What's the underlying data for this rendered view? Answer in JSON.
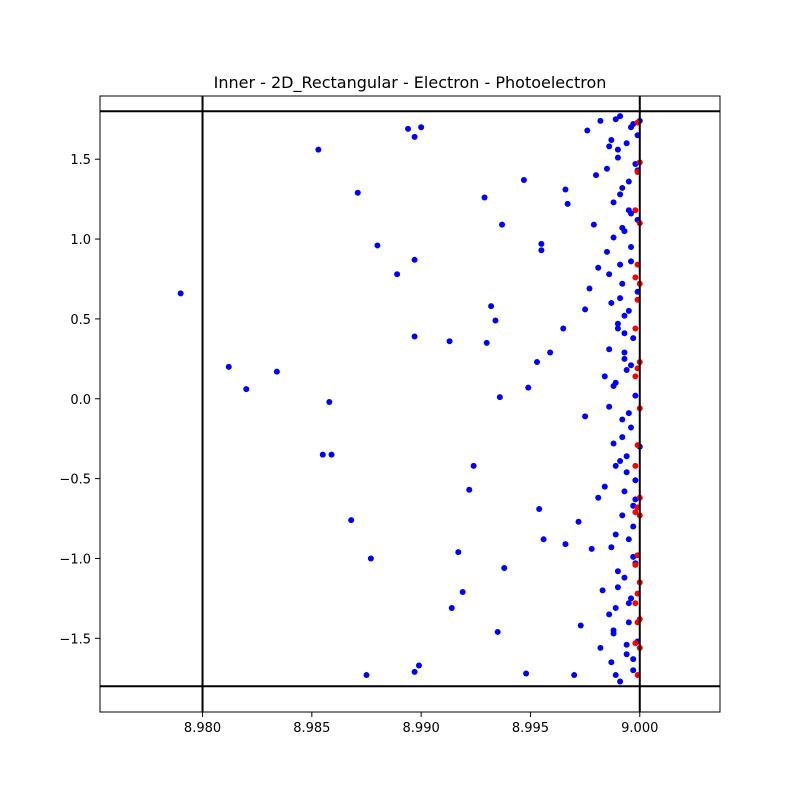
{
  "chart_data": {
    "type": "scatter",
    "title": "Inner - 2D_Rectangular - Electron - Photoelectron",
    "xlabel": "",
    "ylabel": "",
    "xlim": [
      8.97531,
      9.00367
    ],
    "ylim": [
      -1.9613,
      1.8957
    ],
    "xticks": [
      8.98,
      8.985,
      8.99,
      8.995,
      9.0
    ],
    "xtick_labels": [
      "8.980",
      "8.985",
      "8.990",
      "8.995",
      "9.000"
    ],
    "yticks": [
      -1.5,
      -1.0,
      -0.5,
      0.0,
      0.5,
      1.0,
      1.5
    ],
    "ytick_labels": [
      "−1.5",
      "−1.0",
      "−0.5",
      "0.0",
      "0.5",
      "1.0",
      "1.5"
    ],
    "grid": false,
    "reference_lines": {
      "vertical_x": [
        8.98,
        9.0
      ],
      "horizontal_y": [
        -1.8,
        1.8
      ],
      "color": "#000000"
    },
    "series": [
      {
        "color": "#0000ff",
        "x": [
          8.979,
          8.9812,
          8.982,
          8.9834,
          8.9853,
          8.9855,
          8.9858,
          8.9859,
          8.9868,
          8.9871,
          8.9875,
          8.9877,
          8.988,
          8.9889,
          8.9894,
          8.9897,
          8.9897,
          8.9897,
          8.9897,
          8.9899,
          8.99,
          8.9913,
          8.9914,
          8.9917,
          8.9919,
          8.9922,
          8.9924,
          8.9929,
          8.993,
          8.9932,
          8.9934,
          8.9935,
          8.9936,
          8.9937,
          8.9938,
          8.9947,
          8.9948,
          8.9949,
          8.9953,
          8.9954,
          8.9955,
          8.9955,
          8.9956,
          8.9959,
          8.9965,
          8.9966,
          8.9966,
          8.9967,
          8.997,
          8.9972,
          8.9973,
          8.9975,
          8.9975,
          8.9976,
          8.9977,
          8.9978,
          8.9979,
          8.998,
          8.9981,
          8.9981,
          8.9982,
          8.9982,
          8.9983,
          8.9984,
          8.9984,
          8.9985,
          8.9985,
          8.9986,
          8.9986,
          8.9986,
          8.9987,
          8.9987,
          8.9987,
          8.9988,
          8.9988,
          8.9988,
          8.9989,
          8.9989,
          8.9989,
          8.999,
          8.999,
          8.999,
          8.9991,
          8.9991,
          8.9991,
          8.9992,
          8.9992,
          8.9992,
          8.9993,
          8.9993,
          8.9993,
          8.9994,
          8.9994,
          8.9994,
          8.9995,
          8.9995,
          8.9995,
          8.9996,
          8.9996,
          8.9996,
          8.9997,
          8.9997,
          8.9997,
          8.9998,
          8.9998,
          8.9998,
          8.9999,
          8.9999,
          8.9999,
          9.0,
          9.0,
          8.9992,
          8.9996,
          8.9988,
          8.9993,
          8.9997,
          8.999,
          8.9995,
          8.9986,
          8.9998,
          8.9991,
          8.9994,
          8.9989,
          8.9996,
          8.9992,
          8.9987,
          8.9999,
          8.9993,
          8.999,
          8.9995,
          8.9997,
          8.9988,
          8.9994,
          8.9991,
          8.9996,
          8.9989,
          8.9998,
          8.9993,
          8.9986,
          8.9995,
          8.9992,
          8.9997,
          8.999,
          8.9994,
          8.9999,
          8.9988,
          8.9996,
          8.9991,
          8.9993,
          8.9997,
          8.9989,
          8.9995
        ],
        "y": [
          0.66,
          0.2,
          0.06,
          0.17,
          1.56,
          -0.35,
          -0.02,
          -0.35,
          -0.76,
          1.29,
          -1.73,
          -1.0,
          0.96,
          0.78,
          1.69,
          1.64,
          0.39,
          0.87,
          -1.71,
          -1.67,
          1.7,
          0.36,
          -1.31,
          -0.96,
          -1.21,
          -0.57,
          -0.42,
          1.26,
          0.35,
          0.58,
          0.49,
          -1.46,
          0.01,
          1.09,
          -1.06,
          1.37,
          -1.72,
          0.07,
          0.23,
          -0.69,
          0.97,
          0.93,
          -0.88,
          0.29,
          0.44,
          -0.91,
          1.31,
          1.22,
          -1.73,
          -0.77,
          -1.42,
          0.56,
          -0.11,
          1.68,
          0.69,
          -0.94,
          1.09,
          1.4,
          0.82,
          -0.62,
          1.74,
          -1.56,
          -1.2,
          0.14,
          -0.55,
          1.44,
          0.92,
          -1.35,
          0.31,
          -0.05,
          1.62,
          -1.65,
          0.6,
          1.23,
          -0.28,
          -1.47,
          1.75,
          0.1,
          -0.85,
          1.51,
          -1.08,
          0.47,
          1.77,
          -0.39,
          -1.77,
          0.72,
          1.32,
          -0.73,
          1.05,
          -1.12,
          0.25,
          1.6,
          -0.46,
          -1.6,
          0.55,
          1.18,
          -1.28,
          0.86,
          -0.18,
          1.7,
          -0.99,
          0.38,
          -1.7,
          1.47,
          -0.63,
          0.02,
          1.12,
          -1.52,
          0.67,
          -0.3,
          1.74,
          -0.13,
          -1.25,
          1.01,
          0.41,
          -0.8,
          1.56,
          -1.4,
          0.78,
          -0.51,
          1.28,
          0.18,
          -1.73,
          0.95,
          -0.24,
          -0.93,
          1.65,
          0.52,
          -1.18,
          1.36,
          -0.67,
          0.08,
          -1.54,
          0.63,
          1.16,
          -0.42,
          -1.03,
          0.29,
          1.58,
          -0.88,
          1.07,
          -1.63,
          0.44,
          -0.36,
          1.43,
          -1.45,
          0.21,
          0.84,
          -0.58,
          1.72,
          -1.31,
          -0.09
        ],
        "marker": "circle"
      },
      {
        "color": "#ff0000",
        "x": [
          8.9999,
          9.0,
          8.9999,
          8.9998,
          9.0,
          8.9999,
          8.9998,
          9.0,
          8.9999,
          8.9998,
          9.0,
          8.9999,
          8.9998,
          9.0,
          8.9999,
          8.9998,
          9.0,
          8.9999,
          8.9998,
          9.0,
          8.9999,
          8.9998,
          9.0,
          8.9999,
          8.9998,
          9.0,
          8.9999,
          8.9998,
          9.0,
          8.9999
        ],
        "y": [
          1.73,
          1.48,
          1.42,
          1.18,
          1.1,
          0.84,
          0.76,
          0.72,
          0.62,
          0.44,
          0.23,
          0.19,
          0.14,
          -0.06,
          -0.29,
          -0.42,
          -0.62,
          -0.68,
          -0.71,
          -0.73,
          -0.98,
          -1.04,
          -1.15,
          -1.22,
          -1.28,
          -1.38,
          -1.4,
          -1.53,
          -1.56,
          -1.73
        ],
        "marker": "circle"
      }
    ]
  }
}
